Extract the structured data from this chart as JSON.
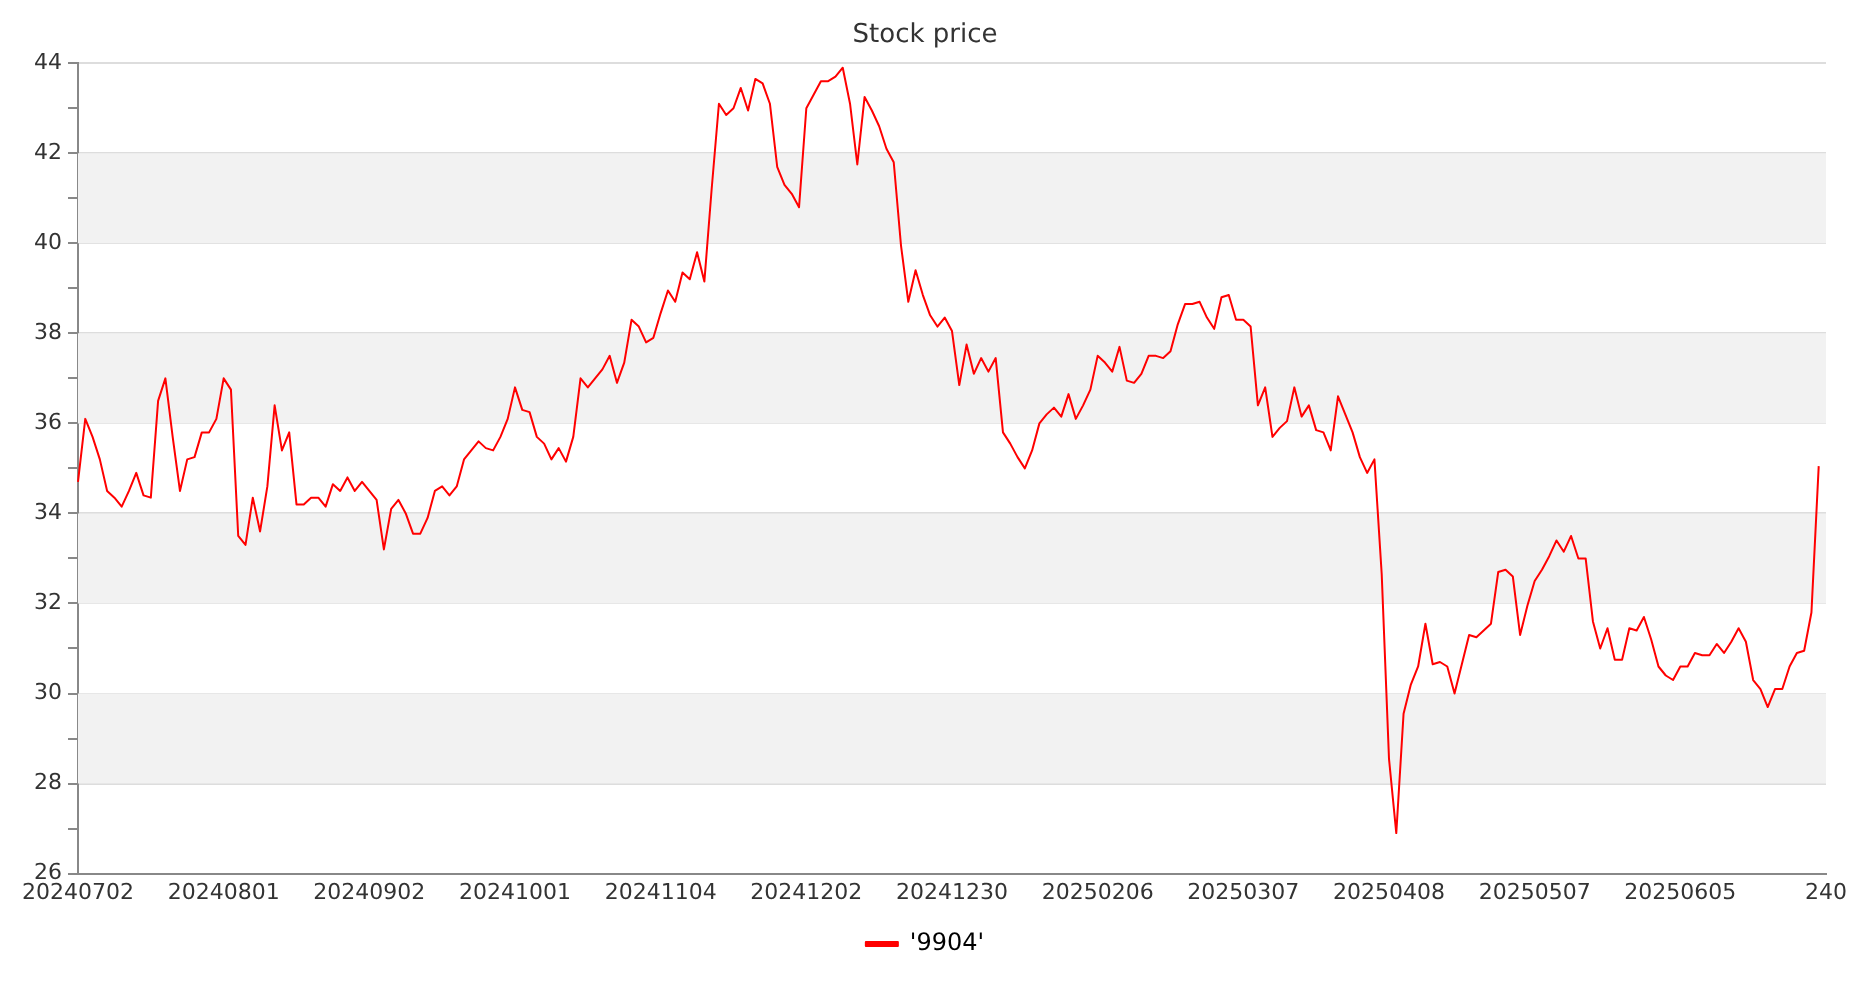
{
  "chart_data": {
    "type": "line",
    "title": "Stock price",
    "categories": [
      "20240702",
      null,
      null,
      null,
      null,
      null,
      null,
      null,
      null,
      null,
      null,
      null,
      null,
      null,
      null,
      null,
      null,
      null,
      null,
      null,
      "20240801",
      null,
      null,
      null,
      null,
      null,
      null,
      null,
      null,
      null,
      null,
      null,
      null,
      null,
      null,
      null,
      null,
      null,
      null,
      null,
      "20240902",
      null,
      null,
      null,
      null,
      null,
      null,
      null,
      null,
      null,
      null,
      null,
      null,
      null,
      null,
      null,
      null,
      null,
      null,
      null,
      "20241001",
      null,
      null,
      null,
      null,
      null,
      null,
      null,
      null,
      null,
      null,
      null,
      null,
      null,
      null,
      null,
      null,
      null,
      null,
      null,
      "20241104",
      null,
      null,
      null,
      null,
      null,
      null,
      null,
      null,
      null,
      null,
      null,
      null,
      null,
      null,
      null,
      null,
      null,
      null,
      null,
      "20241202",
      null,
      null,
      null,
      null,
      null,
      null,
      null,
      null,
      null,
      null,
      null,
      null,
      null,
      null,
      null,
      null,
      null,
      null,
      null,
      "20241230",
      null,
      null,
      null,
      null,
      null,
      null,
      null,
      null,
      null,
      null,
      null,
      null,
      null,
      null,
      null,
      null,
      null,
      null,
      null,
      "20250206",
      null,
      null,
      null,
      null,
      null,
      null,
      null,
      null,
      null,
      null,
      null,
      null,
      null,
      null,
      null,
      null,
      null,
      null,
      null,
      "20250307",
      null,
      null,
      null,
      null,
      null,
      null,
      null,
      null,
      null,
      null,
      null,
      null,
      null,
      null,
      null,
      null,
      null,
      null,
      null,
      "20250408",
      null,
      null,
      null,
      null,
      null,
      null,
      null,
      null,
      null,
      null,
      null,
      null,
      null,
      null,
      null,
      null,
      null,
      null,
      null,
      "20250507",
      null,
      null,
      null,
      null,
      null,
      null,
      null,
      null,
      null,
      null,
      null,
      null,
      null,
      null,
      null,
      null,
      null,
      null,
      null,
      "20250605",
      null,
      null,
      null,
      null,
      null,
      null,
      null,
      null,
      null,
      null,
      null,
      null,
      null,
      null,
      null,
      null,
      null,
      null,
      null,
      "240"
    ],
    "series": [
      {
        "name": "'9904'",
        "color": "#ff0000",
        "values": [
          34.7,
          36.1,
          35.7,
          35.2,
          34.5,
          34.35,
          34.15,
          34.5,
          34.9,
          34.4,
          34.35,
          36.5,
          37.0,
          35.7,
          34.5,
          35.2,
          35.25,
          35.8,
          35.8,
          36.1,
          37.0,
          36.75,
          33.5,
          33.3,
          34.35,
          33.6,
          34.6,
          36.4,
          35.4,
          35.8,
          34.2,
          34.2,
          34.35,
          34.35,
          34.15,
          34.65,
          34.5,
          34.8,
          34.5,
          34.7,
          34.5,
          34.3,
          33.2,
          34.1,
          34.3,
          34.0,
          33.55,
          33.55,
          33.9,
          34.5,
          34.6,
          34.4,
          34.6,
          35.2,
          35.4,
          35.6,
          35.45,
          35.4,
          35.7,
          36.1,
          36.8,
          36.3,
          36.25,
          35.7,
          35.55,
          35.2,
          35.45,
          35.15,
          35.7,
          37.0,
          36.8,
          37.0,
          37.2,
          37.5,
          36.9,
          37.35,
          38.3,
          38.15,
          37.8,
          37.9,
          38.45,
          38.95,
          38.7,
          39.35,
          39.2,
          39.8,
          39.15,
          41.2,
          43.1,
          42.85,
          43.0,
          43.45,
          42.95,
          43.65,
          43.55,
          43.1,
          41.7,
          41.3,
          41.1,
          40.8,
          43.0,
          43.3,
          43.6,
          43.6,
          43.7,
          43.9,
          43.1,
          41.75,
          43.25,
          42.95,
          42.6,
          42.1,
          41.8,
          39.95,
          38.7,
          39.4,
          38.85,
          38.4,
          38.15,
          38.35,
          38.05,
          36.85,
          37.75,
          37.1,
          37.45,
          37.15,
          37.45,
          35.8,
          35.55,
          35.25,
          35.0,
          35.4,
          36.0,
          36.2,
          36.35,
          36.15,
          36.65,
          36.1,
          36.4,
          36.75,
          37.5,
          37.35,
          37.15,
          37.7,
          36.95,
          36.9,
          37.1,
          37.5,
          37.5,
          37.45,
          37.6,
          38.2,
          38.65,
          38.65,
          38.7,
          38.35,
          38.1,
          38.8,
          38.85,
          38.3,
          38.3,
          38.15,
          36.4,
          36.8,
          35.7,
          35.9,
          36.05,
          36.8,
          36.15,
          36.4,
          35.85,
          35.8,
          35.4,
          36.6,
          36.2,
          35.8,
          35.25,
          34.9,
          35.2,
          32.65,
          28.55,
          26.9,
          29.55,
          30.2,
          30.6,
          31.55,
          30.65,
          30.7,
          30.6,
          30.0,
          30.65,
          31.3,
          31.25,
          31.4,
          31.55,
          32.7,
          32.75,
          32.6,
          31.3,
          31.95,
          32.5,
          32.75,
          33.05,
          33.4,
          33.15,
          33.5,
          33.0,
          33.0,
          31.6,
          31.0,
          31.45,
          30.75,
          30.75,
          31.45,
          31.4,
          31.7,
          31.2,
          30.6,
          30.4,
          30.3,
          30.6,
          30.6,
          30.9,
          30.85,
          30.85,
          31.1,
          30.9,
          31.15,
          31.45,
          31.15,
          30.3,
          30.1,
          29.7,
          30.1,
          30.1,
          30.6,
          30.9,
          30.95,
          31.8,
          35.05,
          null
        ]
      }
    ],
    "ylim": [
      26,
      44
    ],
    "yticks": [
      26,
      {
        "value": 27,
        "label": null
      },
      28,
      {
        "value": 29,
        "label": null
      },
      30,
      {
        "value": 31,
        "label": null
      },
      32,
      {
        "value": 33,
        "label": null
      },
      34,
      {
        "value": 35,
        "label": null
      },
      36,
      {
        "value": 37,
        "label": null
      },
      38,
      {
        "value": 39,
        "label": null
      },
      40,
      {
        "value": 41,
        "label": null
      },
      42,
      {
        "value": 43,
        "label": null
      },
      44
    ],
    "grid": "y",
    "legend": "bottom",
    "marker": "none",
    "line_style": "solid"
  }
}
